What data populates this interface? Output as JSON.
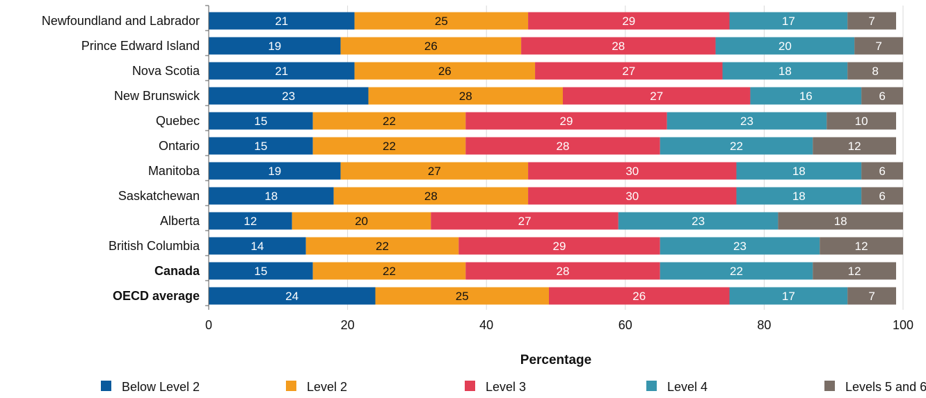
{
  "chart_data": {
    "type": "bar",
    "orientation": "horizontal",
    "stacked": true,
    "categories": [
      "Newfoundland and Labrador",
      "Prince Edward Island",
      "Nova Scotia",
      "New Brunswick",
      "Quebec",
      "Ontario",
      "Manitoba",
      "Saskatchewan",
      "Alberta",
      "British Columbia",
      "Canada",
      "OECD average"
    ],
    "bold_categories": [
      "Canada",
      "OECD average"
    ],
    "series": [
      {
        "name": "Below Level 2",
        "color": "#0a5a9c",
        "label_color": "#ffffff",
        "values": [
          21,
          19,
          21,
          23,
          15,
          15,
          19,
          18,
          12,
          14,
          15,
          24
        ]
      },
      {
        "name": "Level 2",
        "color": "#f39c1f",
        "label_color": "#111111",
        "values": [
          25,
          26,
          26,
          28,
          22,
          22,
          27,
          28,
          20,
          22,
          22,
          25
        ]
      },
      {
        "name": "Level 3",
        "color": "#e23f55",
        "label_color": "#ffffff",
        "values": [
          29,
          28,
          27,
          27,
          29,
          28,
          30,
          30,
          27,
          29,
          28,
          26
        ]
      },
      {
        "name": "Level 4",
        "color": "#3895ad",
        "label_color": "#ffffff",
        "values": [
          17,
          20,
          18,
          16,
          23,
          22,
          18,
          18,
          23,
          23,
          22,
          17
        ]
      },
      {
        "name": "Levels 5 and 6",
        "color": "#7a6e66",
        "label_color": "#ffffff",
        "values": [
          7,
          7,
          8,
          6,
          10,
          12,
          6,
          6,
          18,
          12,
          12,
          7
        ]
      }
    ],
    "xlabel": "Percentage",
    "xlim": [
      0,
      100
    ],
    "xticks": [
      0,
      20,
      40,
      60,
      80,
      100
    ],
    "grid": true,
    "legend_position": "bottom"
  }
}
